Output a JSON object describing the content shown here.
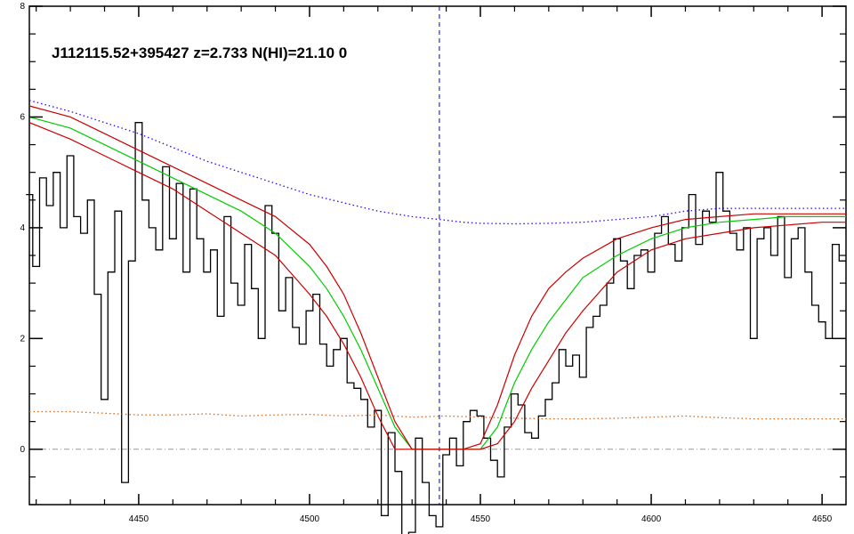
{
  "chart_data": {
    "type": "line",
    "title": "J112115.52+395427 z=2.733 N(HI)=21.10 0",
    "xlabel": "",
    "ylabel": "",
    "xlim": [
      4418,
      4657
    ],
    "ylim": [
      -1.0,
      8.0
    ],
    "x_ticks": [
      4450,
      4500,
      4550,
      4600,
      4650
    ],
    "y_ticks": [
      0,
      2,
      4,
      6,
      8
    ],
    "grid": false,
    "absorber_wavelength": 4538,
    "zero_line": 0,
    "colors": {
      "flux": "#000000",
      "fit": "#00cc00",
      "fit_bounds": "#cc0000",
      "continuum": "#3300ff",
      "error": "#d2691e",
      "absorber_marker": "#0000cc",
      "zero_line": "#999999"
    },
    "series": [
      {
        "style": "steps",
        "color": "#000000",
        "x": [
          4418,
          4420,
          4422,
          4424,
          4426,
          4428,
          4430,
          4432,
          4434,
          4436,
          4438,
          4440,
          4442,
          4444,
          4446,
          4448,
          4450,
          4452,
          4454,
          4456,
          4458,
          4460,
          4462,
          4464,
          4466,
          4468,
          4470,
          4472,
          4474,
          4476,
          4478,
          4480,
          4482,
          4484,
          4486,
          4488,
          4490,
          4492,
          4494,
          4496,
          4498,
          4500,
          4502,
          4504,
          4506,
          4508,
          4510,
          4512,
          4514,
          4516,
          4518,
          4520,
          4522,
          4524,
          4526,
          4528,
          4530,
          4532,
          4534,
          4536,
          4538,
          4540,
          4542,
          4544,
          4546,
          4548,
          4550,
          4552,
          4554,
          4556,
          4558,
          4560,
          4562,
          4564,
          4566,
          4568,
          4570,
          4572,
          4574,
          4576,
          4578,
          4580,
          4582,
          4584,
          4586,
          4588,
          4590,
          4592,
          4594,
          4596,
          4598,
          4600,
          4602,
          4604,
          4606,
          4608,
          4610,
          4612,
          4614,
          4616,
          4618,
          4620,
          4622,
          4624,
          4626,
          4628,
          4630,
          4632,
          4634,
          4636,
          4638,
          4640,
          4642,
          4644,
          4646,
          4648,
          4650,
          4652,
          4654,
          4656
        ],
        "values": [
          4.6,
          3.3,
          4.9,
          4.4,
          5.0,
          4.0,
          5.3,
          4.2,
          3.9,
          4.5,
          2.8,
          0.9,
          3.2,
          4.3,
          -0.6,
          3.4,
          5.9,
          4.5,
          4.0,
          3.6,
          5.1,
          3.8,
          4.8,
          3.2,
          4.7,
          3.8,
          3.2,
          3.6,
          2.4,
          4.2,
          3.0,
          2.6,
          3.7,
          2.9,
          2.0,
          4.4,
          3.9,
          2.5,
          3.1,
          2.2,
          1.9,
          2.5,
          2.8,
          1.9,
          1.5,
          1.8,
          2.0,
          1.2,
          1.1,
          0.9,
          0.4,
          0.7,
          -1.2,
          0.3,
          -0.4,
          -1.8,
          -1.5,
          0.2,
          -0.6,
          -1.2,
          -1.4,
          -0.1,
          0.2,
          -0.3,
          0.5,
          0.7,
          0.6,
          0.2,
          -0.2,
          -0.5,
          0.4,
          1.0,
          0.8,
          0.3,
          0.2,
          0.6,
          0.9,
          1.2,
          1.8,
          1.5,
          1.7,
          1.3,
          2.2,
          2.4,
          2.6,
          3.0,
          3.8,
          3.4,
          2.9,
          3.5,
          3.6,
          3.2,
          3.9,
          4.2,
          3.7,
          3.4,
          4.0,
          4.6,
          3.7,
          4.3,
          4.1,
          5.0,
          4.3,
          3.9,
          3.6,
          4.0,
          2.0,
          3.8,
          4.0,
          3.5,
          4.2,
          3.1,
          3.8,
          4.0,
          3.2,
          2.6,
          2.3,
          2.0,
          3.7,
          3.4
        ]
      },
      {
        "style": "smooth",
        "color": "#00cc00",
        "x": [
          4418,
          4430,
          4440,
          4450,
          4460,
          4470,
          4480,
          4490,
          4500,
          4505,
          4510,
          4515,
          4520,
          4525,
          4530,
          4535,
          4538,
          4541,
          4545,
          4550,
          4555,
          4560,
          4565,
          4570,
          4575,
          4580,
          4590,
          4600,
          4610,
          4620,
          4630,
          4640,
          4650,
          4657
        ],
        "values": [
          6.0,
          5.8,
          5.5,
          5.2,
          4.9,
          4.6,
          4.3,
          3.9,
          3.3,
          2.9,
          2.4,
          1.8,
          1.1,
          0.4,
          0.0,
          0.0,
          0.0,
          0.0,
          0.0,
          0.0,
          0.4,
          1.2,
          1.8,
          2.3,
          2.7,
          3.1,
          3.5,
          3.8,
          4.0,
          4.1,
          4.15,
          4.2,
          4.2,
          4.2
        ]
      },
      {
        "style": "smooth",
        "color": "#cc0000",
        "x": [
          4418,
          4430,
          4440,
          4450,
          4460,
          4470,
          4480,
          4490,
          4500,
          4505,
          4510,
          4515,
          4520,
          4525,
          4530,
          4535,
          4538,
          4541,
          4545,
          4550,
          4555,
          4560,
          4565,
          4570,
          4575,
          4580,
          4590,
          4600,
          4610,
          4620,
          4630,
          4640,
          4650,
          4657
        ],
        "values": [
          6.2,
          6.0,
          5.7,
          5.4,
          5.1,
          4.8,
          4.5,
          4.2,
          3.7,
          3.3,
          2.8,
          2.1,
          1.3,
          0.5,
          0.0,
          0.0,
          0.0,
          0.0,
          0.0,
          0.1,
          0.8,
          1.7,
          2.4,
          2.9,
          3.2,
          3.45,
          3.8,
          4.0,
          4.15,
          4.2,
          4.25,
          4.25,
          4.25,
          4.25
        ]
      },
      {
        "style": "smooth",
        "color": "#cc0000",
        "x": [
          4418,
          4430,
          4440,
          4450,
          4460,
          4470,
          4480,
          4490,
          4500,
          4505,
          4510,
          4515,
          4520,
          4525,
          4530,
          4535,
          4538,
          4541,
          4545,
          4550,
          4555,
          4560,
          4565,
          4570,
          4575,
          4580,
          4590,
          4600,
          4610,
          4620,
          4630,
          4640,
          4650,
          4657
        ],
        "values": [
          5.9,
          5.6,
          5.3,
          5.0,
          4.7,
          4.3,
          3.9,
          3.5,
          2.8,
          2.4,
          1.9,
          1.3,
          0.6,
          0.0,
          0.0,
          0.0,
          0.0,
          0.0,
          0.0,
          0.0,
          0.1,
          0.5,
          1.1,
          1.6,
          2.1,
          2.5,
          3.2,
          3.6,
          3.8,
          3.9,
          4.0,
          4.05,
          4.1,
          4.1
        ]
      },
      {
        "style": "dotted",
        "color": "#3300ff",
        "x": [
          4418,
          4430,
          4440,
          4450,
          4460,
          4470,
          4480,
          4490,
          4500,
          4510,
          4520,
          4530,
          4538,
          4545,
          4550,
          4560,
          4570,
          4580,
          4590,
          4600,
          4610,
          4620,
          4630,
          4640,
          4650,
          4657
        ],
        "values": [
          6.3,
          6.1,
          5.9,
          5.7,
          5.45,
          5.2,
          5.0,
          4.8,
          4.6,
          4.45,
          4.3,
          4.2,
          4.15,
          4.1,
          4.08,
          4.07,
          4.08,
          4.1,
          4.15,
          4.2,
          4.3,
          4.35,
          4.35,
          4.35,
          4.35,
          4.35
        ]
      },
      {
        "style": "dotted",
        "color": "#d2691e",
        "x": [
          4418,
          4430,
          4440,
          4450,
          4460,
          4470,
          4480,
          4490,
          4500,
          4510,
          4520,
          4530,
          4540,
          4550,
          4560,
          4570,
          4580,
          4590,
          4600,
          4610,
          4620,
          4630,
          4640,
          4650,
          4657
        ],
        "values": [
          0.68,
          0.68,
          0.65,
          0.62,
          0.62,
          0.64,
          0.6,
          0.62,
          0.63,
          0.6,
          0.62,
          0.58,
          0.6,
          0.58,
          0.56,
          0.55,
          0.55,
          0.56,
          0.58,
          0.6,
          0.57,
          0.55,
          0.55,
          0.55,
          0.55
        ]
      }
    ]
  }
}
